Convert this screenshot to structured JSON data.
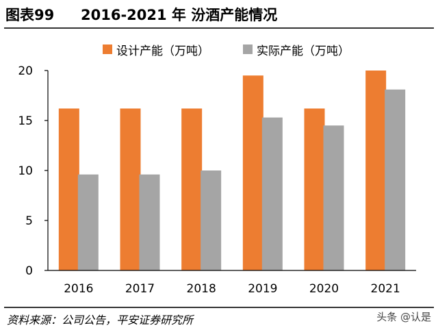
{
  "header": {
    "figure_number": "图表99",
    "figure_title": "2016-2021 年 汾酒产能情况"
  },
  "footer": {
    "source": "资料来源：公司公告，平安证券研究所",
    "watermark": "头条 @认是"
  },
  "colors": {
    "design_capacity": "#ED7D31",
    "actual_capacity": "#A5A5A5",
    "axis": "#000000"
  },
  "chart_data": {
    "type": "bar",
    "title": "2016-2021 年 汾酒产能情况",
    "categories": [
      "2016",
      "2017",
      "2018",
      "2019",
      "2020",
      "2021"
    ],
    "series": [
      {
        "name": "设计产能（万吨）",
        "values": [
          16.2,
          16.2,
          16.2,
          19.5,
          16.2,
          20.0
        ]
      },
      {
        "name": "实际产能（万吨）",
        "values": [
          9.6,
          9.6,
          10.0,
          15.3,
          14.5,
          18.1
        ]
      }
    ],
    "ylim": [
      0,
      20
    ],
    "yticks": [
      "0",
      "5",
      "10",
      "15",
      "20"
    ],
    "legend_position": "top-center",
    "grid": false
  }
}
